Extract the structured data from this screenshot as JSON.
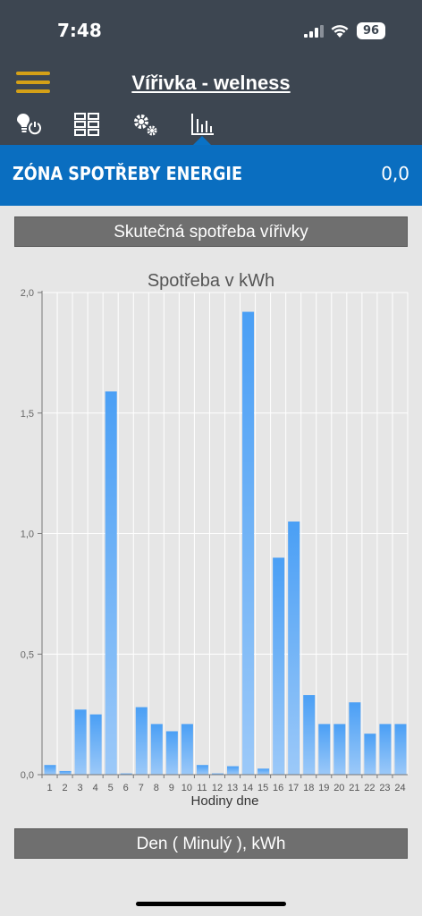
{
  "status": {
    "time": "7:48",
    "battery": "96"
  },
  "header": {
    "title": "Vířivka - welness"
  },
  "tabs": [
    {
      "name": "tab-lights",
      "icon": "bulb-power-icon"
    },
    {
      "name": "tab-grid",
      "icon": "grid-icon"
    },
    {
      "name": "tab-settings",
      "icon": "gears-icon"
    },
    {
      "name": "tab-chart",
      "icon": "bar-chart-icon"
    }
  ],
  "zone": {
    "title": "ZÓNA SPOTŘEBY ENERGIE",
    "value": "0,0"
  },
  "section_top": {
    "label": "Skutečná spotřeba vířivky"
  },
  "section_bottom": {
    "label": "Den ( Minulý ), kWh"
  },
  "chart_data": {
    "type": "bar",
    "title": "Spotřeba v kWh",
    "xlabel": "Hodiny dne",
    "ylabel": "",
    "categories": [
      "1",
      "2",
      "3",
      "4",
      "5",
      "6",
      "7",
      "8",
      "9",
      "10",
      "11",
      "12",
      "13",
      "14",
      "15",
      "16",
      "17",
      "18",
      "19",
      "20",
      "21",
      "22",
      "23",
      "24"
    ],
    "values": [
      0.04,
      0.015,
      0.27,
      0.25,
      1.59,
      0.005,
      0.28,
      0.21,
      0.18,
      0.21,
      0.04,
      0.005,
      0.035,
      1.92,
      0.025,
      0.9,
      1.05,
      0.33,
      0.21,
      0.21,
      0.3,
      0.17,
      0.21,
      0.21
    ],
    "ylim": [
      0,
      2.0
    ],
    "yticks": [
      "0,0",
      "0,5",
      "1,0",
      "1,5",
      "2,0"
    ],
    "ytick_values": [
      0,
      0.5,
      1.0,
      1.5,
      2.0
    ],
    "bar_color": "#4a9ff5",
    "grid": true
  }
}
